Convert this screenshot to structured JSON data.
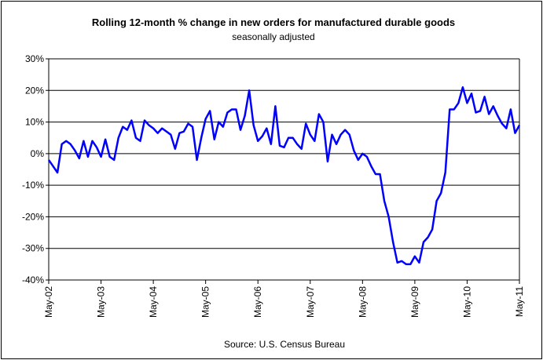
{
  "chart_data": {
    "type": "line",
    "title": "Rolling 12-month %  change in new orders for manufactured durable goods",
    "subtitle": "seasonally adjusted",
    "source": "Source: U.S. Census Bureau",
    "categories": [
      "May-02",
      null,
      null,
      null,
      null,
      null,
      null,
      null,
      null,
      null,
      null,
      null,
      "May-03",
      null,
      null,
      null,
      null,
      null,
      null,
      null,
      null,
      null,
      null,
      null,
      "May-04",
      null,
      null,
      null,
      null,
      null,
      null,
      null,
      null,
      null,
      null,
      null,
      "May-05",
      null,
      null,
      null,
      null,
      null,
      null,
      null,
      null,
      null,
      null,
      null,
      "May-06",
      null,
      null,
      null,
      null,
      null,
      null,
      null,
      null,
      null,
      null,
      null,
      "May-07",
      null,
      null,
      null,
      null,
      null,
      null,
      null,
      null,
      null,
      null,
      null,
      "May-08",
      null,
      null,
      null,
      null,
      null,
      null,
      null,
      null,
      null,
      null,
      null,
      "May-09",
      null,
      null,
      null,
      null,
      null,
      null,
      null,
      null,
      null,
      null,
      null,
      "May-10",
      null,
      null,
      null,
      null,
      null,
      null,
      null,
      null,
      null,
      null,
      null,
      "May-11"
    ],
    "series": [
      {
        "name": "Rolling 12-month % change",
        "color": "#0000ff",
        "values": [
          -2,
          -4,
          -6,
          3,
          4,
          3,
          1,
          -1.5,
          4,
          -1,
          4,
          2,
          -1,
          4.5,
          -1,
          -2,
          5,
          8.5,
          7.5,
          10.5,
          5,
          4,
          10.5,
          9,
          8,
          6.5,
          8,
          7,
          6,
          1.5,
          6.5,
          7,
          9.5,
          8.5,
          -2,
          5,
          11,
          13.5,
          4.5,
          10,
          8.5,
          13,
          14,
          14,
          7.5,
          12,
          20,
          9,
          4,
          5.5,
          8,
          3,
          15,
          2.5,
          2,
          5,
          5,
          3,
          1.5,
          9.5,
          6,
          4,
          12.5,
          10,
          -2.5,
          6,
          3,
          6,
          7.5,
          6,
          1,
          -2,
          0,
          -1,
          -4,
          -6.5,
          -6.5,
          -15,
          -20,
          -28,
          -34.5,
          -34,
          -35,
          -35,
          -32.5,
          -34.5,
          -28,
          -26.5,
          -24,
          -15,
          -12.5,
          -6,
          14,
          14,
          16,
          21,
          16,
          19,
          13,
          13.5,
          18,
          12.5,
          15,
          12,
          9.5,
          8,
          14,
          6.5,
          9
        ]
      }
    ],
    "ylim": [
      -40,
      30
    ],
    "yticks": [
      {
        "value": -40,
        "label": "-40%"
      },
      {
        "value": -30,
        "label": "-30%"
      },
      {
        "value": -20,
        "label": "-20%"
      },
      {
        "value": -10,
        "label": "-10%"
      },
      {
        "value": 0,
        "label": "0%"
      },
      {
        "value": 10,
        "label": "10%"
      },
      {
        "value": 20,
        "label": "20%"
      },
      {
        "value": 30,
        "label": "30%"
      }
    ],
    "grid": true
  }
}
